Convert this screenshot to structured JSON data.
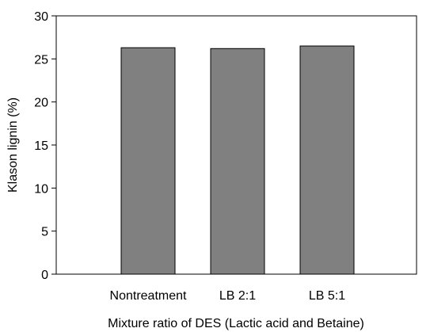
{
  "chart_data": {
    "type": "bar",
    "title": "",
    "xlabel": "Mixture ratio of DES (Lactic acid and Betaine)",
    "ylabel": "Klason lignin (%)",
    "categories": [
      "Nontreatment",
      "LB 2:1",
      "LB 5:1"
    ],
    "series": [
      {
        "values": [
          26.3,
          26.2,
          26.5
        ]
      }
    ],
    "ylim": [
      0,
      30
    ],
    "yticks": [
      0,
      5,
      10,
      15,
      20,
      25,
      30
    ],
    "ytick_labels": [
      "0",
      "5",
      "10",
      "15",
      "20",
      "25",
      "30"
    ],
    "grid": false,
    "legend": "none",
    "bar_color": "#808080",
    "bar_edge_color": "#000000"
  }
}
